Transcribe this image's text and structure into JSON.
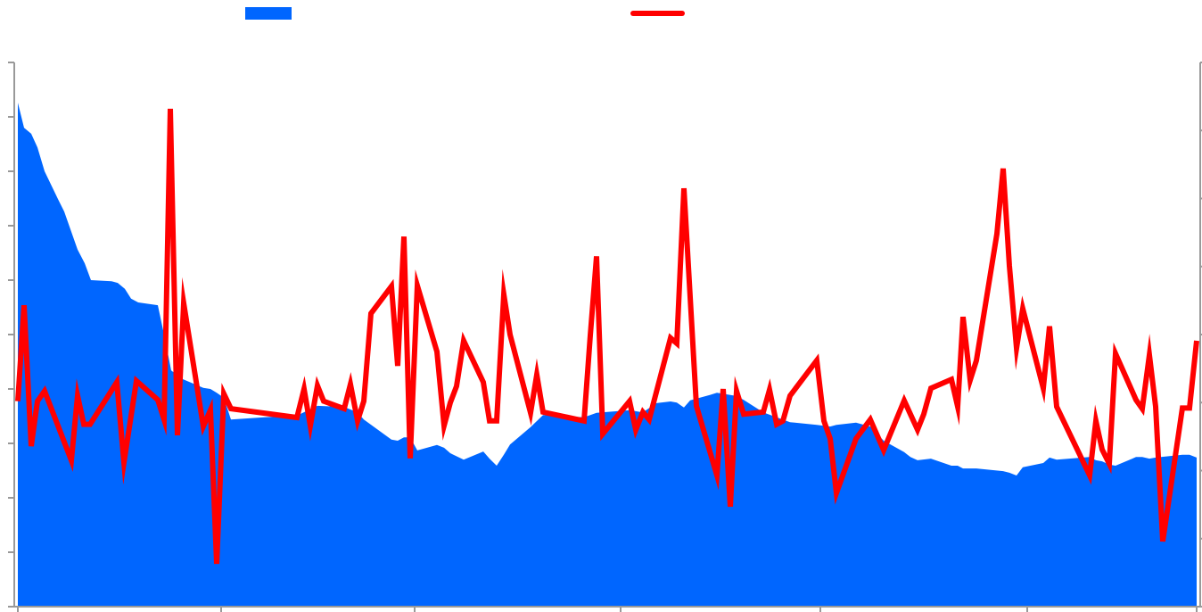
{
  "chart_data": {
    "type": "combo",
    "xlim": [
      0,
      132.2
    ],
    "xticks": [
      0,
      22.8,
      44.5,
      67.6,
      90,
      113.2,
      132.2
    ],
    "ylim": [
      0,
      10
    ],
    "yticks": [
      0,
      1,
      2,
      3,
      4,
      5,
      6,
      7,
      8,
      9,
      10
    ],
    "y2lim": [
      0,
      8
    ],
    "y2ticks": [
      0,
      1,
      2,
      3,
      4,
      5,
      6,
      7,
      8
    ],
    "series": [
      {
        "type": "area",
        "color": "#0066ff",
        "x": [
          0,
          0.7,
          1.5,
          2.2,
          3,
          4.5,
          5.2,
          6.7,
          7.5,
          8.2,
          10.5,
          11.2,
          12,
          12.7,
          13.5,
          15.7,
          16.5,
          17.2,
          18.5,
          20.8,
          21.6,
          22.3,
          23.1,
          23.9,
          27.6,
          31.3,
          33.6,
          36.6,
          38.1,
          38.8,
          41.9,
          42.6,
          43.3,
          44,
          44.8,
          47,
          47.8,
          48.5,
          50,
          52.2,
          52.9,
          53.7,
          54.5,
          55.2,
          57.5,
          58.9,
          63.5,
          64.9,
          68.6,
          70.1,
          71.6,
          73.2,
          73.9,
          74.7,
          75.4,
          77.6,
          78.4,
          80.6,
          81.4,
          83.6,
          85.1,
          86.6,
          89.6,
          91.1,
          91.8,
          94,
          95.6,
          97.1,
          99.4,
          100.1,
          100.9,
          102.4,
          104.7,
          105.4,
          106,
          107.5,
          110.5,
          111.2,
          112,
          112.7,
          115,
          115.7,
          116.5,
          120.2,
          120.9,
          121.6,
          122.4,
          123.1,
          125.4,
          126.1,
          126.9,
          127.6,
          130.6,
          131.4,
          132.2
        ],
        "values": [
          9.26,
          8.8,
          8.69,
          8.44,
          8.0,
          7.49,
          7.26,
          6.56,
          6.31,
          6.0,
          5.98,
          5.95,
          5.84,
          5.66,
          5.59,
          5.54,
          4.92,
          4.34,
          4.18,
          4.02,
          4.0,
          3.93,
          3.84,
          3.44,
          3.48,
          3.51,
          3.69,
          3.67,
          3.57,
          3.44,
          3.07,
          3.05,
          3.11,
          3.11,
          2.87,
          2.97,
          2.92,
          2.82,
          2.7,
          2.85,
          2.72,
          2.59,
          2.79,
          2.98,
          3.3,
          3.52,
          3.48,
          3.56,
          3.61,
          3.57,
          3.74,
          3.77,
          3.75,
          3.66,
          3.79,
          3.89,
          3.93,
          3.87,
          3.8,
          3.57,
          3.48,
          3.39,
          3.34,
          3.31,
          3.34,
          3.38,
          3.31,
          3.05,
          2.84,
          2.75,
          2.69,
          2.72,
          2.59,
          2.59,
          2.54,
          2.54,
          2.49,
          2.46,
          2.41,
          2.56,
          2.64,
          2.74,
          2.7,
          2.75,
          2.69,
          2.67,
          2.61,
          2.59,
          2.75,
          2.75,
          2.72,
          2.74,
          2.79,
          2.79,
          2.74
        ]
      },
      {
        "type": "line",
        "axis": "y2",
        "color": "#ff0000",
        "x": [
          0,
          0.7,
          1.5,
          2.2,
          3,
          6,
          6.7,
          7.4,
          8.1,
          11.1,
          11.9,
          13.3,
          15.7,
          16.4,
          17.1,
          17.9,
          18.6,
          20.8,
          21.6,
          22.3,
          23.1,
          23.9,
          31.3,
          32.1,
          32.8,
          33.6,
          34.3,
          36.6,
          37.3,
          38.1,
          38.8,
          39.6,
          41.9,
          42.6,
          43.3,
          44,
          44.8,
          47,
          47.8,
          48.5,
          49.2,
          50,
          52.2,
          52.9,
          53.7,
          54.5,
          55.2,
          57.5,
          58.2,
          58.9,
          63.5,
          64.2,
          64.9,
          65.6,
          68.6,
          69.3,
          70.1,
          70.8,
          73.2,
          73.9,
          74.7,
          76.1,
          78.4,
          79.1,
          79.9,
          80.6,
          81.4,
          83.6,
          84.3,
          85.1,
          85.8,
          86.6,
          89.6,
          90.4,
          91.1,
          91.8,
          94,
          95.6,
          97.1,
          99.4,
          100.9,
          101.6,
          102.4,
          104.7,
          105.4,
          106,
          106.8,
          107.5,
          109.8,
          110.5,
          111.2,
          112,
          112.7,
          115,
          115.7,
          116.5,
          120.2,
          120.9,
          121.6,
          122.4,
          123.1,
          125.4,
          126.1,
          126.9,
          127.6,
          128.4,
          130.6,
          131.4,
          132.2
        ],
        "values": [
          3.02,
          4.43,
          2.36,
          3.02,
          3.17,
          2.15,
          3.1,
          2.68,
          2.68,
          3.3,
          2.12,
          3.32,
          3.04,
          2.75,
          7.32,
          2.52,
          4.46,
          2.65,
          2.89,
          0.63,
          3.13,
          2.91,
          2.78,
          3.2,
          2.66,
          3.25,
          3.02,
          2.91,
          3.27,
          2.73,
          3.02,
          4.31,
          4.71,
          3.54,
          5.44,
          2.18,
          4.72,
          3.75,
          2.66,
          3.0,
          3.24,
          3.91,
          3.3,
          2.73,
          2.73,
          4.59,
          4.0,
          2.85,
          3.41,
          2.86,
          2.73,
          3.99,
          5.15,
          2.54,
          3.02,
          2.6,
          2.86,
          2.75,
          3.95,
          3.87,
          6.15,
          2.95,
          1.93,
          3.2,
          1.47,
          3.17,
          2.83,
          2.86,
          3.19,
          2.68,
          2.73,
          3.1,
          3.62,
          2.73,
          2.47,
          1.67,
          2.47,
          2.75,
          2.3,
          3.03,
          2.6,
          2.83,
          3.21,
          3.34,
          2.94,
          4.26,
          3.33,
          3.62,
          5.48,
          6.44,
          5.01,
          3.8,
          4.38,
          3.21,
          4.12,
          2.94,
          1.93,
          2.73,
          2.31,
          2.1,
          3.72,
          3.04,
          2.91,
          3.7,
          2.94,
          0.96,
          2.92,
          2.92,
          3.91
        ]
      }
    ]
  }
}
